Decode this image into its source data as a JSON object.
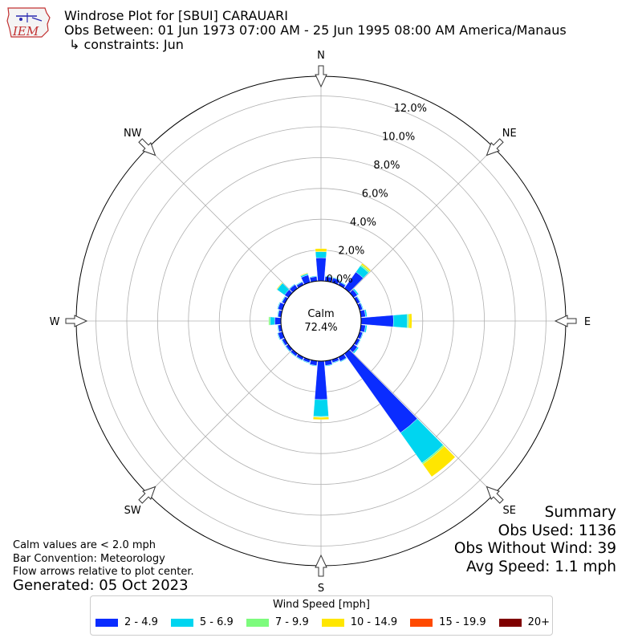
{
  "header": {
    "logo_text": "IEM",
    "title": "Windrose Plot for [SBUI] CARAUARI",
    "obs_between": "Obs Between: 01 Jun 1973 07:00 AM - 25 Jun 1995 08:00 AM America/Manaus",
    "constraints": "↳ constraints: Jun"
  },
  "notes": {
    "calm_note": "Calm values are < 2.0 mph",
    "bar_convention": "Bar Convention: Meteorology",
    "flow_arrows": "Flow arrows relative to plot center.",
    "generated": "Generated: 05 Oct 2023"
  },
  "summary": {
    "heading": "Summary",
    "obs_used": "Obs Used: 1136",
    "obs_without_wind": "Obs Without Wind: 39",
    "avg_speed": "Avg Speed: 1.1 mph"
  },
  "chart_data": {
    "type": "windrose",
    "calm_label": "Calm",
    "calm_value": "72.4%",
    "directions": [
      "N",
      "NE",
      "E",
      "SE",
      "S",
      "SW",
      "W",
      "NW"
    ],
    "radial_ticks": [
      "0.0%",
      "2.0%",
      "4.0%",
      "6.0%",
      "8.0%",
      "10.0%",
      "12.0%"
    ],
    "radial_max": 13.0,
    "legend_title": "Wind Speed [mph]",
    "speed_bins": [
      {
        "label": "2 - 4.9",
        "color": "#0a2cff"
      },
      {
        "label": "5 - 6.9",
        "color": "#00d5f0"
      },
      {
        "label": "7 - 9.9",
        "color": "#7dfb7d"
      },
      {
        "label": "10 - 14.9",
        "color": "#ffe600"
      },
      {
        "label": "15 - 19.9",
        "color": "#ff4a00"
      },
      {
        "label": "20+",
        "color": "#7f0000"
      }
    ],
    "bars": [
      {
        "dir": 0,
        "values": [
          1.5,
          0.4,
          0,
          0.2,
          0,
          0
        ]
      },
      {
        "dir": 10,
        "values": [
          0.3,
          0.05,
          0,
          0,
          0,
          0
        ]
      },
      {
        "dir": 20,
        "values": [
          0.3,
          0.05,
          0,
          0,
          0,
          0
        ]
      },
      {
        "dir": 30,
        "values": [
          0.2,
          0.05,
          0,
          0,
          0,
          0
        ]
      },
      {
        "dir": 40,
        "values": [
          1.3,
          0.5,
          0.1,
          0.1,
          0,
          0
        ]
      },
      {
        "dir": 50,
        "values": [
          0.3,
          0.1,
          0,
          0,
          0,
          0
        ]
      },
      {
        "dir": 60,
        "values": [
          0.2,
          0.05,
          0,
          0,
          0,
          0
        ]
      },
      {
        "dir": 70,
        "values": [
          0.2,
          0.05,
          0,
          0,
          0,
          0
        ]
      },
      {
        "dir": 80,
        "values": [
          0.3,
          0.1,
          0,
          0,
          0,
          0
        ]
      },
      {
        "dir": 90,
        "values": [
          2.1,
          0.9,
          0.1,
          0.2,
          0,
          0
        ]
      },
      {
        "dir": 100,
        "values": [
          0.3,
          0.1,
          0,
          0,
          0,
          0
        ]
      },
      {
        "dir": 110,
        "values": [
          0.2,
          0.05,
          0,
          0,
          0,
          0
        ]
      },
      {
        "dir": 120,
        "values": [
          0.2,
          0.05,
          0,
          0,
          0,
          0
        ]
      },
      {
        "dir": 130,
        "values": [
          0.3,
          0.1,
          0,
          0,
          0,
          0
        ]
      },
      {
        "dir": 140,
        "values": [
          6.3,
          2.4,
          0.1,
          1.0,
          0,
          0
        ]
      },
      {
        "dir": 150,
        "values": [
          0.3,
          0.05,
          0,
          0,
          0,
          0
        ]
      },
      {
        "dir": 160,
        "values": [
          0.2,
          0.05,
          0,
          0,
          0,
          0
        ]
      },
      {
        "dir": 170,
        "values": [
          0.3,
          0.05,
          0,
          0,
          0,
          0
        ]
      },
      {
        "dir": 180,
        "values": [
          2.5,
          1.1,
          0.05,
          0.15,
          0,
          0
        ]
      },
      {
        "dir": 190,
        "values": [
          0.3,
          0.05,
          0,
          0,
          0,
          0
        ]
      },
      {
        "dir": 200,
        "values": [
          0.2,
          0.05,
          0,
          0,
          0,
          0
        ]
      },
      {
        "dir": 210,
        "values": [
          0.2,
          0.05,
          0,
          0,
          0,
          0
        ]
      },
      {
        "dir": 220,
        "values": [
          0.2,
          0.05,
          0,
          0,
          0,
          0
        ]
      },
      {
        "dir": 230,
        "values": [
          0.2,
          0.05,
          0,
          0,
          0,
          0
        ]
      },
      {
        "dir": 240,
        "values": [
          0.2,
          0.05,
          0,
          0,
          0,
          0
        ]
      },
      {
        "dir": 250,
        "values": [
          0.3,
          0.05,
          0,
          0,
          0,
          0
        ]
      },
      {
        "dir": 260,
        "values": [
          0.2,
          0.05,
          0,
          0,
          0,
          0
        ]
      },
      {
        "dir": 270,
        "values": [
          0.4,
          0.3,
          0.1,
          0,
          0,
          0
        ]
      },
      {
        "dir": 280,
        "values": [
          0.2,
          0.05,
          0,
          0,
          0,
          0
        ]
      },
      {
        "dir": 290,
        "values": [
          0.3,
          0.05,
          0,
          0,
          0,
          0
        ]
      },
      {
        "dir": 300,
        "values": [
          0.2,
          0.05,
          0,
          0,
          0,
          0
        ]
      },
      {
        "dir": 310,
        "values": [
          0.3,
          0.6,
          0,
          0.05,
          0,
          0
        ]
      },
      {
        "dir": 320,
        "values": [
          0.3,
          0.05,
          0,
          0,
          0,
          0
        ]
      },
      {
        "dir": 330,
        "values": [
          0.2,
          0.05,
          0,
          0,
          0,
          0
        ]
      },
      {
        "dir": 340,
        "values": [
          0.5,
          0.1,
          0,
          0.05,
          0,
          0
        ]
      },
      {
        "dir": 350,
        "values": [
          0.3,
          0.05,
          0,
          0,
          0,
          0
        ]
      }
    ]
  }
}
